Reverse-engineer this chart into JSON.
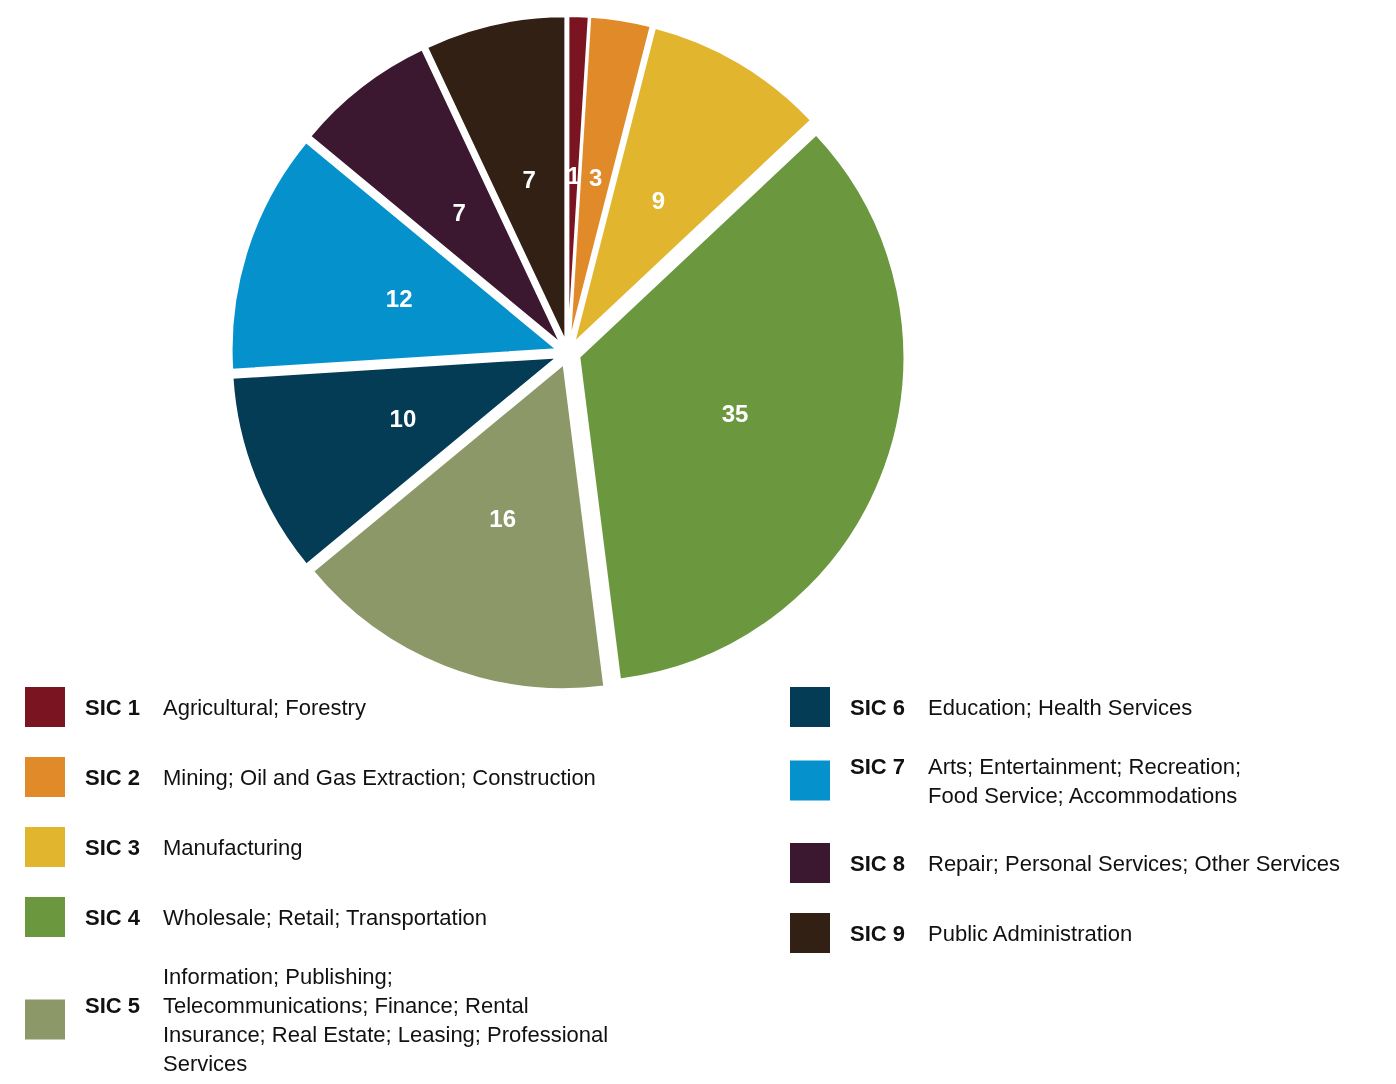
{
  "chart_data": {
    "type": "pie",
    "categories": [
      "SIC 1",
      "SIC 2",
      "SIC 3",
      "SIC 4",
      "SIC 5",
      "SIC 6",
      "SIC 7",
      "SIC 8",
      "SIC 9"
    ],
    "values": [
      1,
      3,
      9,
      35,
      16,
      10,
      12,
      7,
      7
    ],
    "colors": [
      "#7a1420",
      "#e08a2a",
      "#e2b52e",
      "#6b973e",
      "#8c9868",
      "#053c55",
      "#0591cc",
      "#3b1830",
      "#332015"
    ],
    "data_labels": true,
    "legend": "bottom",
    "annotations": [
      "Agricultural; Forestry",
      "Mining; Oil and Gas Extraction; Construction",
      "Manufacturing",
      "Wholesale; Retail; Transportation",
      "Information; Publishing;\nTelecommunications; Finance; Rental\nInsurance; Real Estate; Leasing; Professional\nServices",
      "Education; Health Services",
      "Arts; Entertainment; Recreation;\nFood Service; Accommodations",
      "Repair; Personal Services; Other Services",
      "Public Administration"
    ]
  }
}
